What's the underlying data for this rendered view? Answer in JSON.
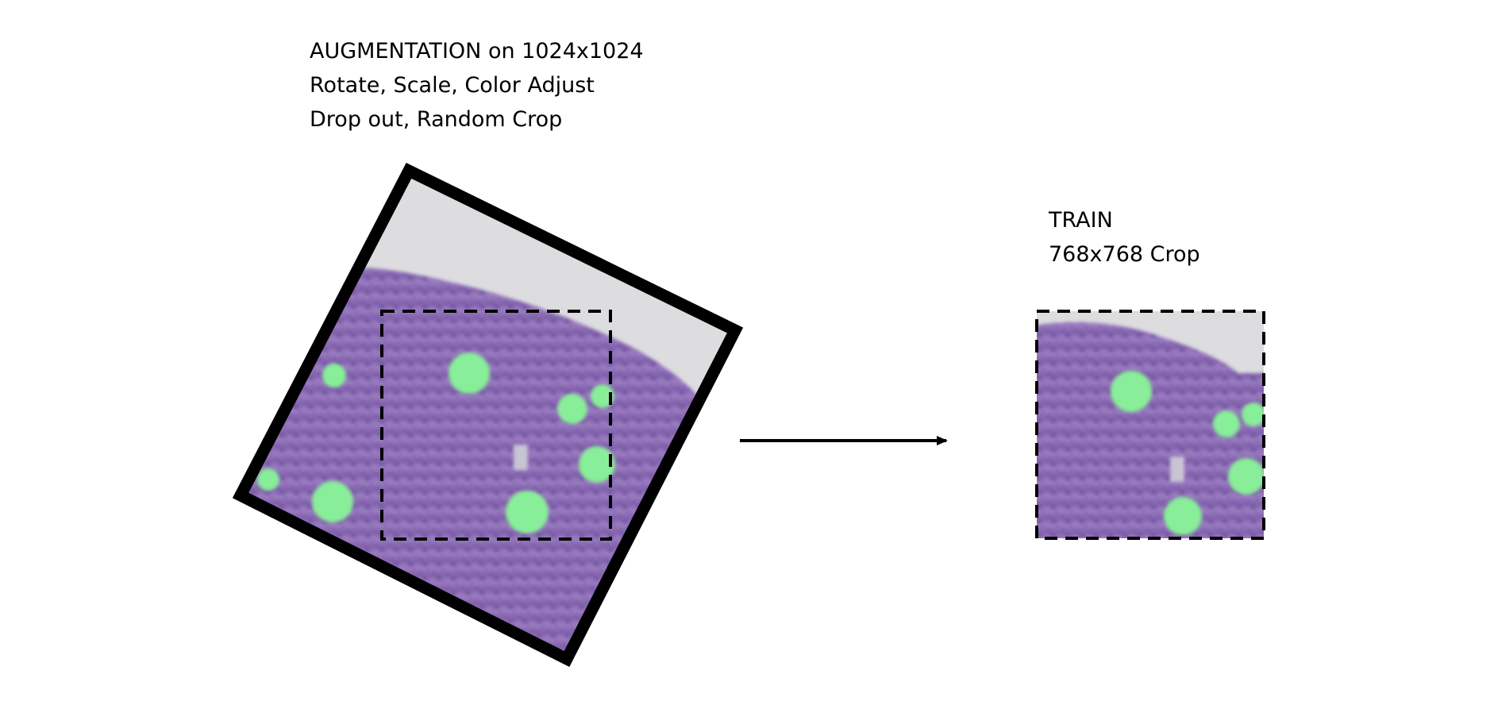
{
  "augmentation": {
    "title": "AUGMENTATION on 1024x1024",
    "line2": "Rotate, Scale, Color Adjust",
    "line3": "Drop out, Random Crop"
  },
  "train": {
    "title": "TRAIN",
    "line2": "768x768 Crop"
  },
  "colors": {
    "tissue": "#8a6bb4",
    "background": "#dddde0",
    "nucleus": "#88ee99",
    "frame": "#000000"
  },
  "icons": {
    "flow_arrow": "arrow-right-icon"
  }
}
